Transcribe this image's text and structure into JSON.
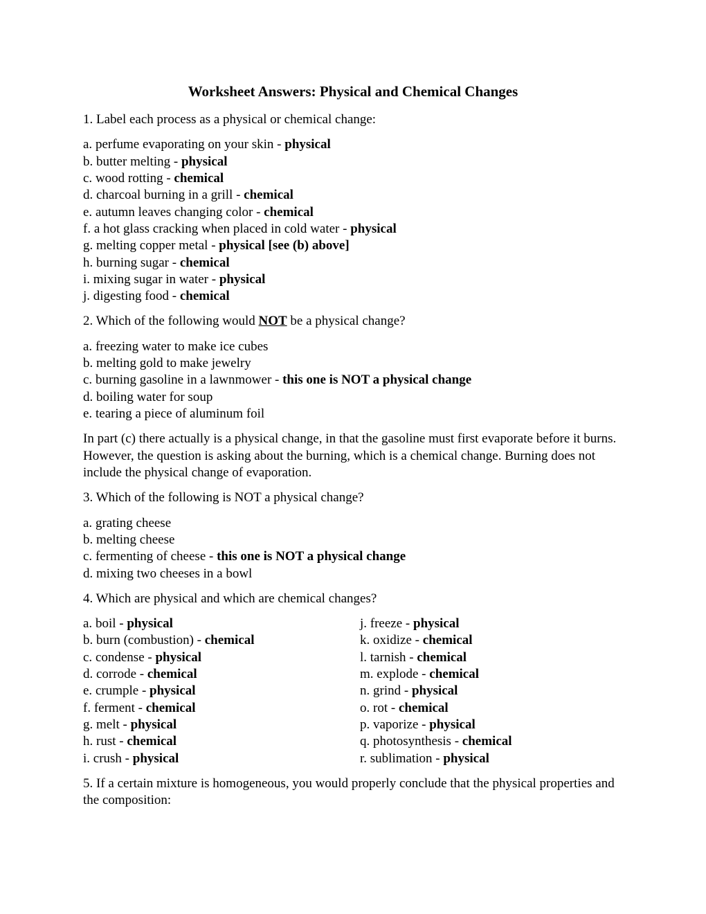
{
  "title": "Worksheet Answers: Physical and Chemical Changes",
  "q1": {
    "prompt": "1. Label each process as a physical or chemical change:",
    "items": [
      {
        "letter": "a.",
        "text": "perfume evaporating on your skin - ",
        "ans": "physical"
      },
      {
        "letter": "b.",
        "text": "butter melting - ",
        "ans": "physical"
      },
      {
        "letter": "c.",
        "text": "wood rotting - ",
        "ans": "chemical"
      },
      {
        "letter": "d.",
        "text": "charcoal burning in a grill - ",
        "ans": "chemical"
      },
      {
        "letter": "e.",
        "text": "autumn leaves changing color - ",
        "ans": "chemical"
      },
      {
        "letter": "f.",
        "text": "a hot glass cracking when placed in cold water - ",
        "ans": "physical"
      },
      {
        "letter": "g.",
        "text": "melting copper metal - ",
        "ans": "physical [see (b) above]"
      },
      {
        "letter": "h.",
        "text": "burning sugar - ",
        "ans": "chemical"
      },
      {
        "letter": "i.",
        "text": "mixing sugar in water - ",
        "ans": "physical"
      },
      {
        "letter": "j.",
        "text": "digesting food - ",
        "ans": "chemical"
      }
    ]
  },
  "q2": {
    "prompt_pre": "2. Which of the following would ",
    "prompt_not": "NOT",
    "prompt_post": " be a physical change?",
    "items": [
      {
        "letter": "a.",
        "text": "freezing water to make ice cubes",
        "ans": ""
      },
      {
        "letter": "b.",
        "text": "melting gold to make jewelry",
        "ans": ""
      },
      {
        "letter": "c.",
        "text": "burning gasoline in a lawnmower - ",
        "ans": "this one is NOT a physical change"
      },
      {
        "letter": "d.",
        "text": "boiling water for soup",
        "ans": ""
      },
      {
        "letter": "e.",
        "text": "tearing a piece of aluminum foil",
        "ans": ""
      }
    ],
    "note": "In part (c) there actually is a physical change, in that the gasoline must first evaporate before it burns. However, the question is asking about the burning, which is a chemical change. Burning does not include the physical change of evaporation."
  },
  "q3": {
    "prompt": "3. Which of the following is NOT a physical change?",
    "items": [
      {
        "letter": "a.",
        "text": "grating cheese",
        "ans": ""
      },
      {
        "letter": "b.",
        "text": "melting cheese",
        "ans": ""
      },
      {
        "letter": "c.",
        "text": "fermenting of cheese - ",
        "ans": "this one is NOT a physical change"
      },
      {
        "letter": "d.",
        "text": "mixing two cheeses in a bowl",
        "ans": ""
      }
    ]
  },
  "q4": {
    "prompt": "4. Which are physical and which are chemical changes?",
    "left": [
      {
        "letter": "a.",
        "text": "boil - ",
        "ans": "physical"
      },
      {
        "letter": "b.",
        "text": "burn (combustion) - ",
        "ans": "chemical"
      },
      {
        "letter": "c.",
        "text": "condense - ",
        "ans": "physical"
      },
      {
        "letter": "d.",
        "text": "corrode - ",
        "ans": "chemical"
      },
      {
        "letter": "e.",
        "text": "crumple - ",
        "ans": "physical"
      },
      {
        "letter": "f.",
        "text": "ferment - ",
        "ans": "chemical"
      },
      {
        "letter": "g.",
        "text": "melt - ",
        "ans": "physical"
      },
      {
        "letter": "h.",
        "text": "rust - ",
        "ans": "chemical"
      },
      {
        "letter": "i.",
        "text": "crush - ",
        "ans": "physical"
      }
    ],
    "right": [
      {
        "letter": "j.",
        "text": "freeze - ",
        "ans": "physical"
      },
      {
        "letter": "k.",
        "text": "oxidize - ",
        "ans": "chemical"
      },
      {
        "letter": "l.",
        "text": "tarnish - ",
        "ans": "chemical"
      },
      {
        "letter": "m.",
        "text": "explode - ",
        "ans": "chemical"
      },
      {
        "letter": "n.",
        "text": "grind - ",
        "ans": "physical"
      },
      {
        "letter": "o.",
        "text": "rot - ",
        "ans": "chemical"
      },
      {
        "letter": "p.",
        "text": "vaporize - ",
        "ans": "physical"
      },
      {
        "letter": "q.",
        "text": "photosynthesis - ",
        "ans": "chemical"
      },
      {
        "letter": "r.",
        "text": "sublimation - ",
        "ans": "physical"
      }
    ]
  },
  "q5": {
    "prompt": "5. If a certain mixture is homogeneous, you would properly conclude that the physical properties and the composition:"
  }
}
